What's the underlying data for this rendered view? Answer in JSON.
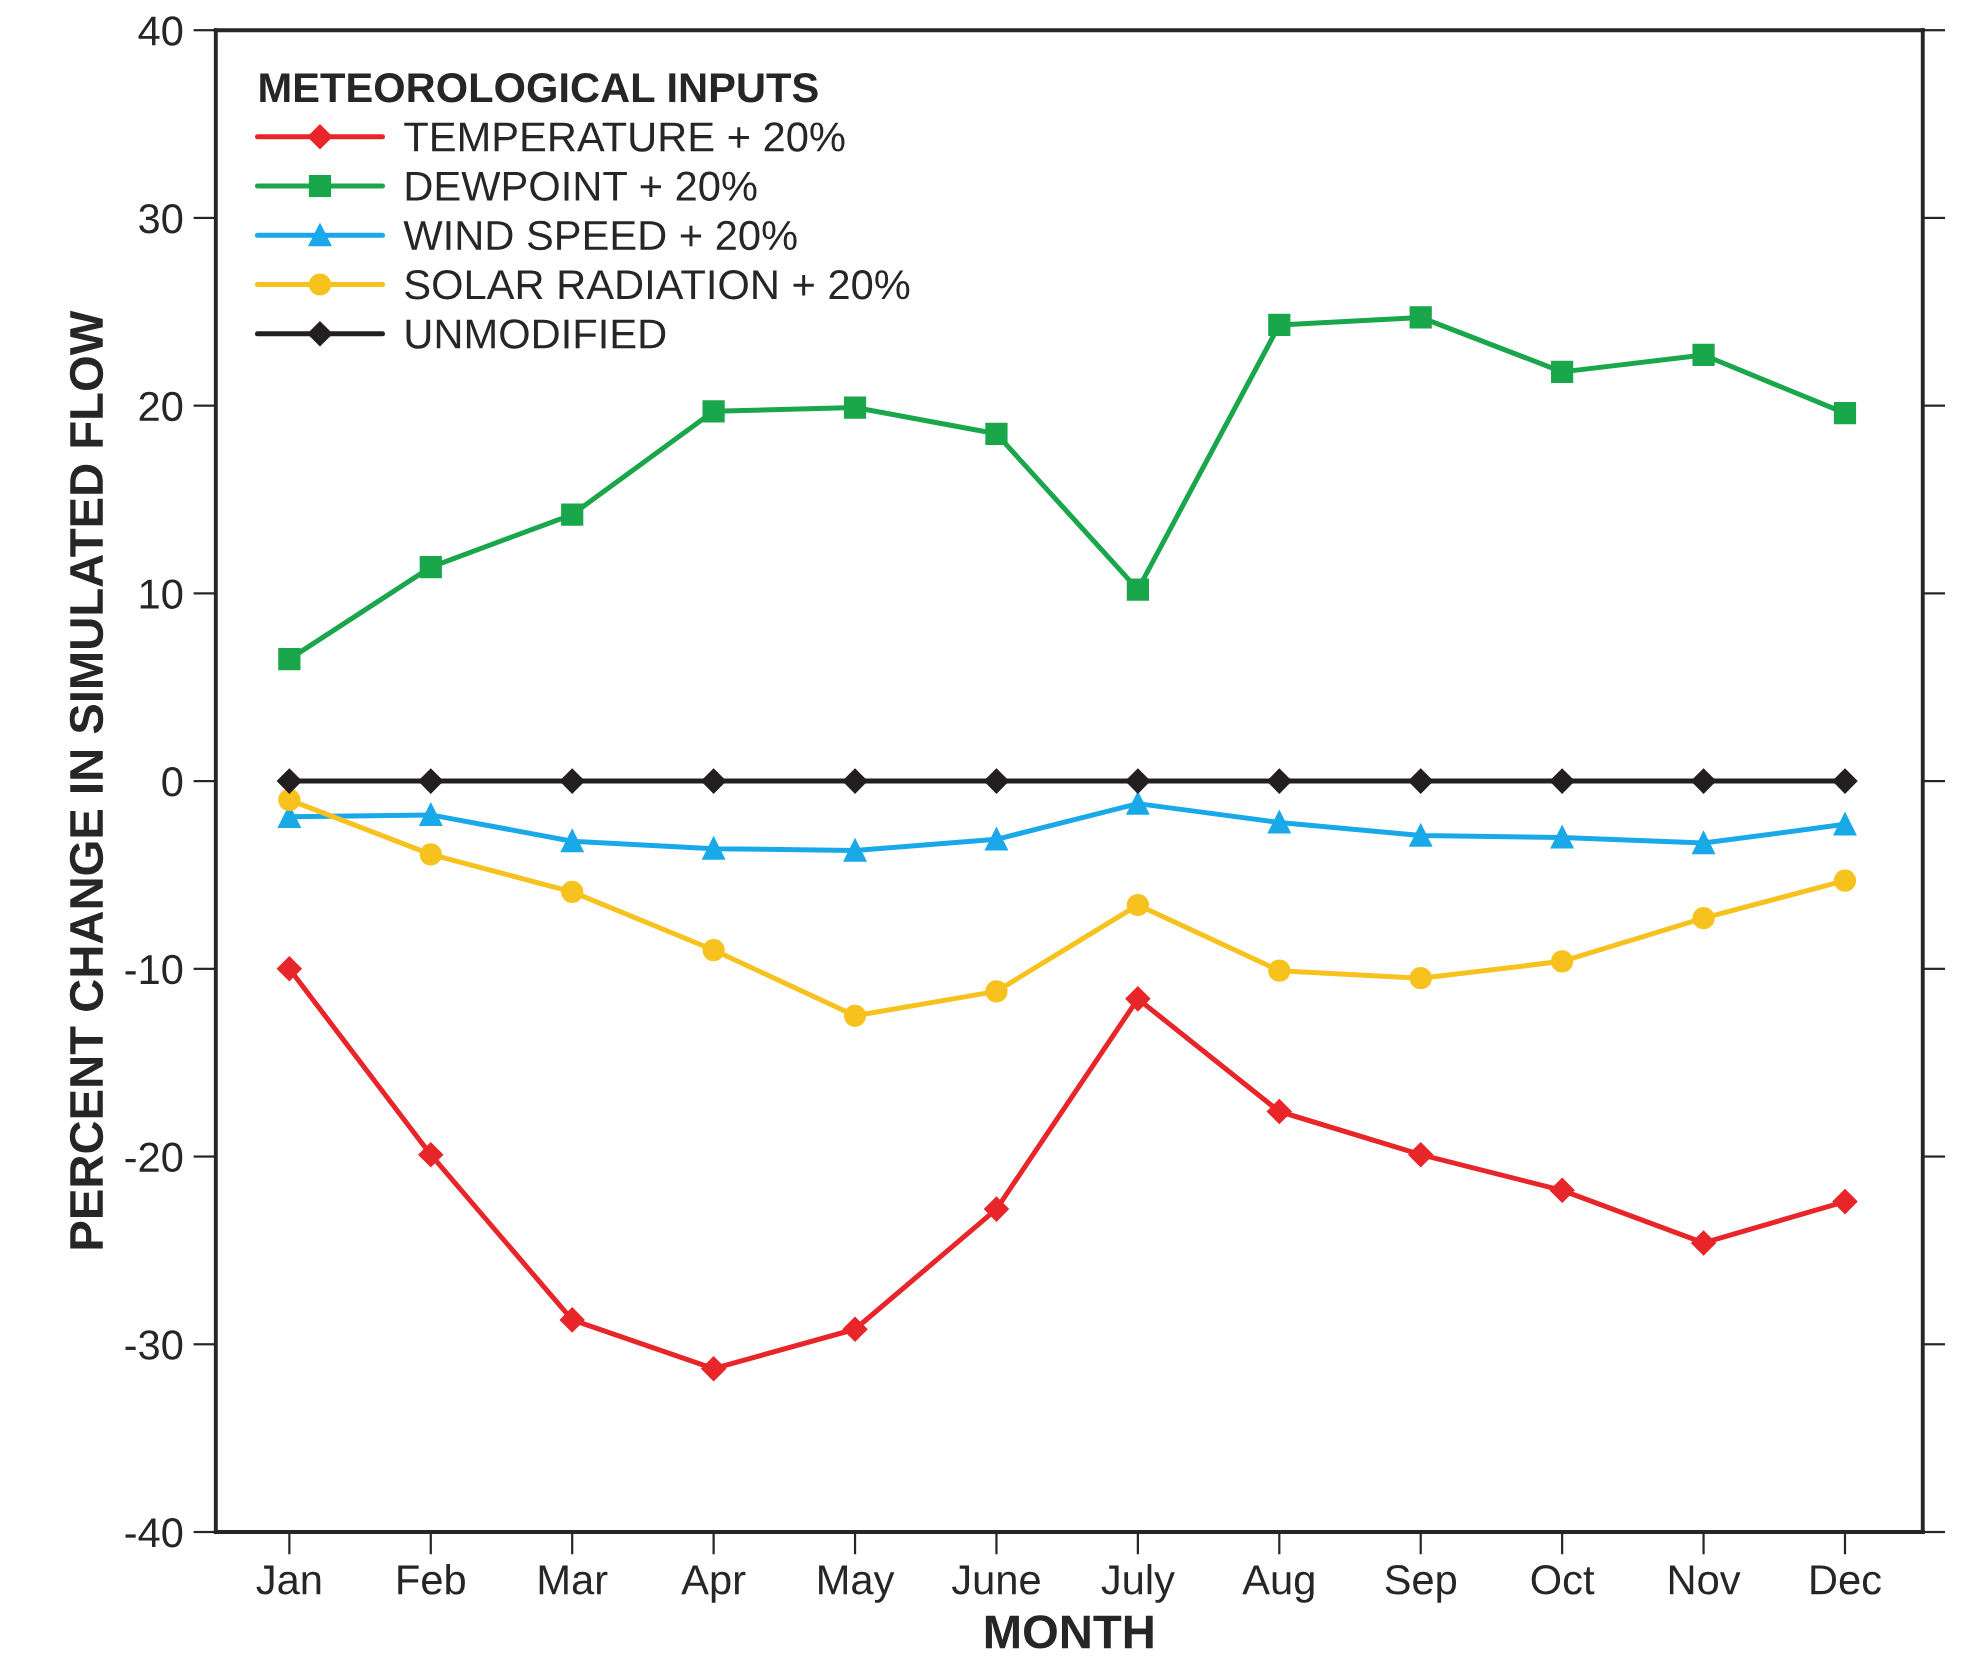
{
  "chart_data": {
    "type": "line",
    "xlabel": "MONTH",
    "ylabel": "PERCENT CHANGE IN SIMULATED FLOW",
    "legend_title": "METEOROLOGICAL INPUTS",
    "legend": "top left",
    "grid": false,
    "line_style": "solid",
    "categories": [
      "Jan",
      "Feb",
      "Mar",
      "Apr",
      "May",
      "June",
      "July",
      "Aug",
      "Sep",
      "Oct",
      "Nov",
      "Dec"
    ],
    "ylim": [
      -40,
      40
    ],
    "yticks": [
      -40,
      -30,
      -20,
      -10,
      0,
      10,
      20,
      30,
      40
    ],
    "series": [
      {
        "name": "TEMPERATURE + 20%",
        "color": "#e8262a",
        "marker": "diamond",
        "values": [
          -10.0,
          -19.9,
          -28.7,
          -31.3,
          -29.2,
          -22.8,
          -11.6,
          -17.6,
          -19.9,
          -21.8,
          -24.6,
          -22.4
        ]
      },
      {
        "name": "DEWPOINT + 20%",
        "color": "#1aa64a",
        "marker": "square",
        "values": [
          6.5,
          11.4,
          14.2,
          19.7,
          19.9,
          18.5,
          10.2,
          24.3,
          24.7,
          21.8,
          22.7,
          19.6
        ]
      },
      {
        "name": "WIND SPEED + 20%",
        "color": "#1aa9e8",
        "marker": "triangle",
        "values": [
          -1.9,
          -1.8,
          -3.2,
          -3.6,
          -3.7,
          -3.1,
          -1.2,
          -2.2,
          -2.9,
          -3.0,
          -3.3,
          -2.3
        ]
      },
      {
        "name": "SOLAR RADIATION + 20%",
        "color": "#f7c21e",
        "marker": "circle",
        "values": [
          -1.0,
          -3.9,
          -5.9,
          -9.0,
          -12.5,
          -11.2,
          -6.6,
          -10.1,
          -10.5,
          -9.6,
          -7.3,
          -5.3
        ]
      },
      {
        "name": "UNMODIFIED",
        "color": "#231f20",
        "marker": "diamond",
        "values": [
          0,
          0,
          0,
          0,
          0,
          0,
          0,
          0,
          0,
          0,
          0,
          0
        ]
      }
    ]
  }
}
